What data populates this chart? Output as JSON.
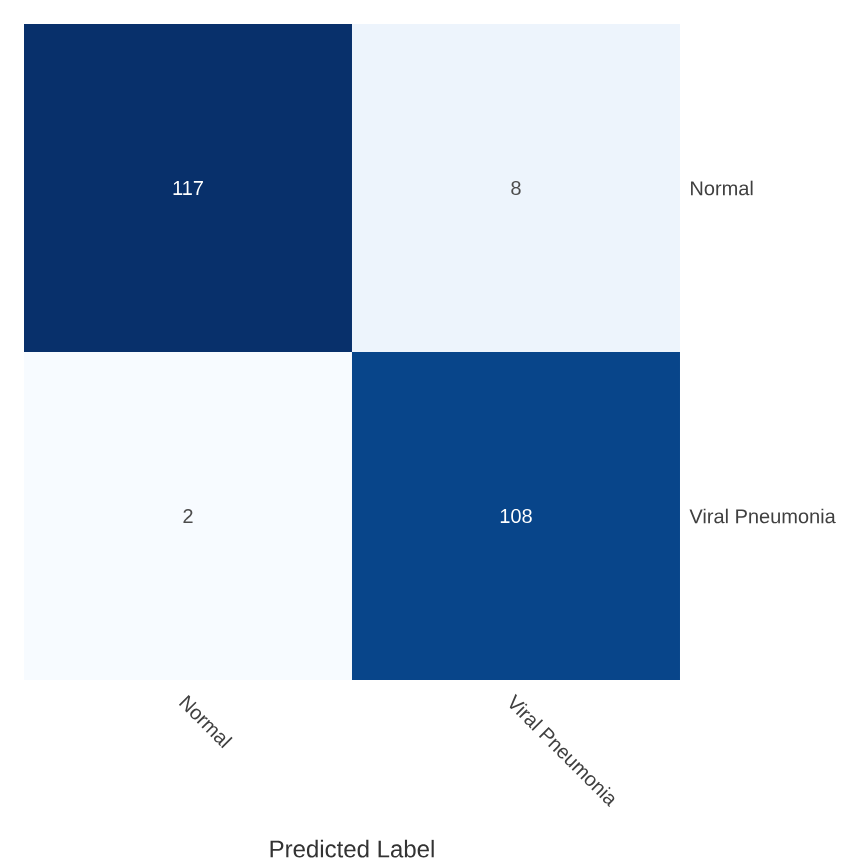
{
  "chart_data": {
    "type": "heatmap",
    "xlabel": "Predicted Label",
    "categories": [
      "Normal",
      "Viral Pneumonia"
    ],
    "y_categories": [
      "Normal",
      "Viral Pneumonia"
    ],
    "cells": [
      [
        117,
        8
      ],
      [
        2,
        108
      ]
    ],
    "data_labels": true
  }
}
